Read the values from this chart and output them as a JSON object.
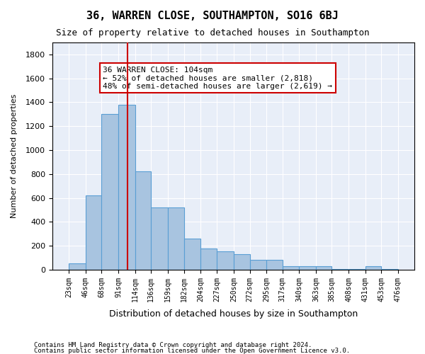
{
  "title1": "36, WARREN CLOSE, SOUTHAMPTON, SO16 6BJ",
  "title2": "Size of property relative to detached houses in Southampton",
  "xlabel": "Distribution of detached houses by size in Southampton",
  "ylabel": "Number of detached properties",
  "footnote1": "Contains HM Land Registry data © Crown copyright and database right 2024.",
  "footnote2": "Contains public sector information licensed under the Open Government Licence v3.0.",
  "annotation_line1": "36 WARREN CLOSE: 104sqm",
  "annotation_line2": "← 52% of detached houses are smaller (2,818)",
  "annotation_line3": "48% of semi-detached houses are larger (2,619) →",
  "property_size": 104,
  "bar_color": "#a8c4e0",
  "bar_edge_color": "#5a9fd4",
  "line_color": "#cc0000",
  "background_color": "#e8eef8",
  "ylim": [
    0,
    1900
  ],
  "yticks": [
    0,
    200,
    400,
    600,
    800,
    1000,
    1200,
    1400,
    1600,
    1800
  ],
  "bins": [
    23,
    46,
    68,
    91,
    114,
    136,
    159,
    182,
    204,
    227,
    250,
    272,
    295,
    317,
    340,
    363,
    385,
    408,
    431,
    453,
    476
  ],
  "values": [
    55,
    620,
    1300,
    1380,
    820,
    520,
    520,
    260,
    175,
    155,
    130,
    80,
    80,
    30,
    30,
    30,
    5,
    5,
    30,
    5
  ]
}
